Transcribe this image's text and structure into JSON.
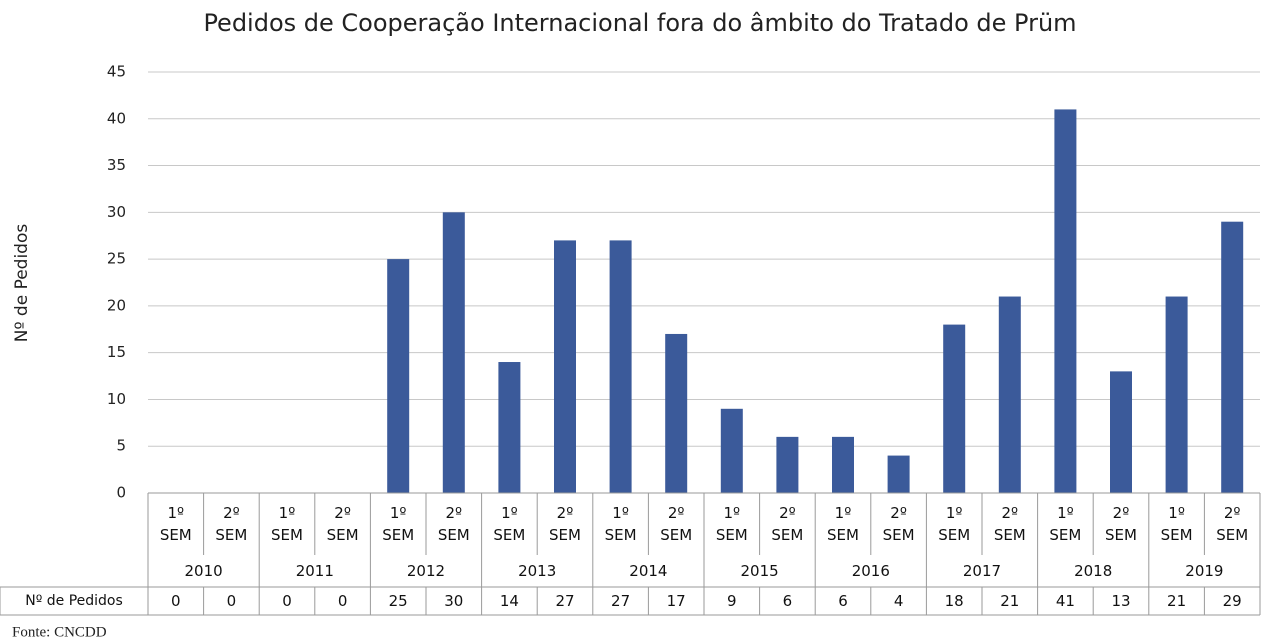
{
  "chart_data": {
    "type": "bar",
    "title": "Pedidos de Cooperação Internacional fora do âmbito do Tratado de Prüm",
    "y_label": "Nº de Pedidos",
    "categories": [
      "1º SEM",
      "2º SEM",
      "1º SEM",
      "2º SEM",
      "1º SEM",
      "2º SEM",
      "1º SEM",
      "2º SEM",
      "1º SEM",
      "2º SEM",
      "1º SEM",
      "2º SEM",
      "1º SEM",
      "2º SEM",
      "1º SEM",
      "2º SEM",
      "1º SEM",
      "2º SEM",
      "1º SEM",
      "2º SEM"
    ],
    "groups": [
      "2010",
      "2011",
      "2012",
      "2013",
      "2014",
      "2015",
      "2016",
      "2017",
      "2018",
      "2019"
    ],
    "values": [
      0,
      0,
      0,
      0,
      25,
      30,
      14,
      27,
      27,
      17,
      9,
      6,
      6,
      4,
      18,
      21,
      41,
      13,
      21,
      29
    ],
    "color": "#3b5a9a",
    "table_row_label": "Nº de Pedidos",
    "source": "Fonte: CNCDD",
    "ylim": [
      0,
      45
    ],
    "yticks": [
      0,
      5,
      10,
      15,
      20,
      25,
      30,
      35,
      40,
      45
    ],
    "grid": true
  }
}
